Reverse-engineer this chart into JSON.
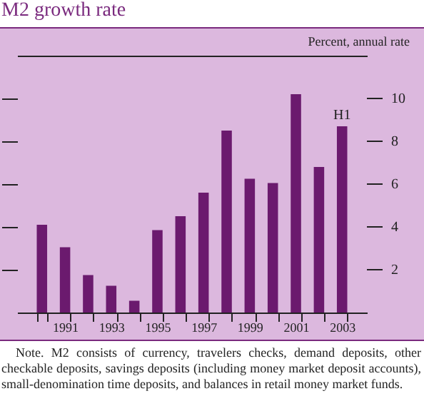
{
  "chart_data": {
    "type": "bar",
    "title": "M2 growth rate",
    "ylabel": "Percent, annual rate",
    "categories": [
      null,
      "1991",
      null,
      "1993",
      null,
      "1995",
      null,
      "1997",
      null,
      "1999",
      null,
      "2001",
      null,
      "2003"
    ],
    "values": [
      4.1,
      3.05,
      1.75,
      1.25,
      0.55,
      3.85,
      4.5,
      5.6,
      8.5,
      6.25,
      6.05,
      10.2,
      6.8,
      8.7
    ],
    "color": "#6b1a6e",
    "ylim": [
      0,
      12
    ],
    "yticks": [
      2,
      4,
      6,
      8,
      10
    ],
    "grid": false,
    "annotations": [
      {
        "text": "H1",
        "x": "2003",
        "y": 8.7
      },
      "Note. M2 consists of currency, travelers checks, demand deposits, other checkable deposits, savings deposits (including money market deposit accounts), small-denomination time deposits, and balances in retail money market funds."
    ]
  }
}
